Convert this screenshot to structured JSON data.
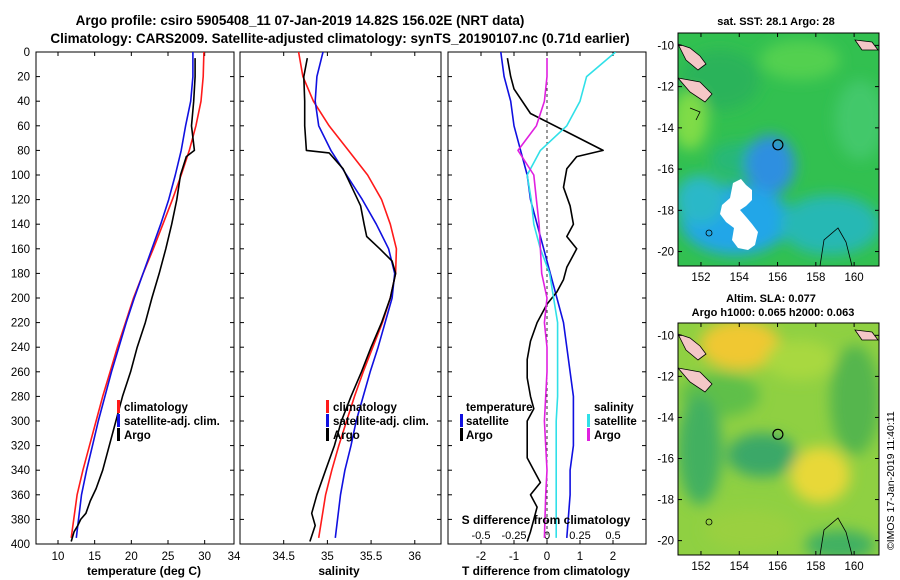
{
  "title_line1": "Argo profile: csiro 5905408_11 07-Jan-2019 14.82S 156.02E (NRT data)",
  "title_line2": "Climatology: CARS2009. Satellite-adjusted climatology: synTS_20190107.nc (0.71d earlier)",
  "credit": "©IMOS 17-Jan-2019 11:40:11",
  "colors": {
    "climatology": "#ff1a1a",
    "satellite": "#1010e0",
    "argo": "#000000",
    "sat_salinity": "#30e0e8",
    "argo_salinity": "#e020e0"
  },
  "chart_data": [
    {
      "type": "line",
      "id": "temperature",
      "xlabel": "temperature (deg C)",
      "ylabel": "",
      "xlim": [
        7,
        34
      ],
      "ylim": [
        400,
        0
      ],
      "y_reversed": true,
      "xticks": [
        10,
        15,
        20,
        25,
        30
      ],
      "yticks": [
        0,
        20,
        40,
        60,
        80,
        100,
        120,
        140,
        160,
        180,
        200,
        220,
        240,
        260,
        280,
        300,
        320,
        340,
        360,
        380,
        400
      ],
      "legend": [
        "climatology",
        "satellite-adj. clim.",
        "Argo"
      ],
      "series": [
        {
          "name": "climatology",
          "color": "#ff1a1a",
          "x": [
            29.9,
            29.8,
            29.5,
            28.8,
            27.9,
            26.8,
            25.6,
            24.3,
            23.0,
            21.6,
            20.3,
            19.2,
            18.1,
            17.1,
            16.1,
            15.2,
            14.3,
            13.4,
            12.6,
            11.8
          ],
          "y": [
            0,
            20,
            40,
            60,
            80,
            100,
            120,
            140,
            160,
            180,
            200,
            220,
            240,
            260,
            280,
            300,
            320,
            340,
            360,
            395
          ]
        },
        {
          "name": "satellite-adj. clim.",
          "color": "#1010e0",
          "x": [
            28.4,
            28.4,
            28.1,
            27.4,
            26.8,
            26.0,
            25.1,
            24.0,
            22.8,
            21.6,
            20.4,
            19.3,
            18.3,
            17.3,
            16.4,
            15.5,
            14.7,
            13.9,
            13.2,
            12.5
          ],
          "y": [
            0,
            20,
            40,
            60,
            80,
            100,
            120,
            140,
            160,
            180,
            200,
            220,
            240,
            260,
            280,
            300,
            320,
            340,
            360,
            395
          ]
        },
        {
          "name": "Argo",
          "color": "#000000",
          "x": [
            28.7,
            28.7,
            28.5,
            28.2,
            28.6,
            27.5,
            26.7,
            26.2,
            25.5,
            24.7,
            23.8,
            22.8,
            21.9,
            20.8,
            19.9,
            18.8,
            17.9,
            17.0,
            16.1,
            15.2,
            14.4,
            13.8,
            13.1,
            12.7,
            12.2,
            11.8
          ],
          "y": [
            5,
            20,
            40,
            60,
            80,
            85,
            100,
            120,
            140,
            160,
            180,
            200,
            220,
            240,
            260,
            280,
            300,
            320,
            340,
            355,
            365,
            375,
            380,
            385,
            390,
            398
          ]
        }
      ]
    },
    {
      "type": "line",
      "id": "salinity",
      "xlabel": "salinity",
      "ylabel": "",
      "xlim": [
        34,
        36.3
      ],
      "ylim": [
        400,
        0
      ],
      "y_reversed": true,
      "xticks": [
        34.5,
        35,
        35.5,
        36
      ],
      "xtick_labels": [
        "34.5",
        "35",
        "35.5",
        "36"
      ],
      "yticks": [
        0,
        20,
        40,
        60,
        80,
        100,
        120,
        140,
        160,
        180,
        200,
        220,
        240,
        260,
        280,
        300,
        320,
        340,
        360,
        380,
        400
      ],
      "legend": [
        "climatology",
        "satellite-adj. clim.",
        "Argo"
      ],
      "series": [
        {
          "name": "climatology",
          "color": "#ff1a1a",
          "x": [
            34.67,
            34.72,
            34.84,
            35.02,
            35.24,
            35.46,
            35.62,
            35.72,
            35.79,
            35.78,
            35.72,
            35.63,
            35.52,
            35.41,
            35.31,
            35.22,
            35.13,
            35.05,
            34.98,
            34.9
          ],
          "y": [
            0,
            20,
            40,
            60,
            80,
            100,
            120,
            140,
            160,
            180,
            200,
            220,
            240,
            260,
            280,
            300,
            320,
            340,
            360,
            395
          ]
        },
        {
          "name": "satellite-adj. clim.",
          "color": "#1010e0",
          "x": [
            34.95,
            34.88,
            34.86,
            34.9,
            35.04,
            35.22,
            35.4,
            35.56,
            35.7,
            35.77,
            35.74,
            35.66,
            35.58,
            35.49,
            35.41,
            35.33,
            35.27,
            35.2,
            35.15,
            35.09
          ],
          "y": [
            0,
            20,
            40,
            60,
            80,
            100,
            120,
            140,
            160,
            180,
            200,
            220,
            240,
            260,
            280,
            300,
            320,
            340,
            360,
            395
          ]
        },
        {
          "name": "Argo",
          "color": "#000000",
          "x": [
            34.77,
            34.73,
            34.74,
            34.74,
            34.76,
            35.02,
            35.18,
            35.28,
            35.38,
            35.42,
            35.45,
            35.6,
            35.74,
            35.78,
            35.72,
            35.62,
            35.5,
            35.39,
            35.27,
            35.16,
            35.08,
            34.98,
            34.88,
            34.82,
            34.86,
            34.8
          ],
          "y": [
            5,
            20,
            40,
            60,
            80,
            82,
            95,
            110,
            125,
            140,
            150,
            160,
            170,
            180,
            200,
            220,
            240,
            260,
            280,
            300,
            320,
            340,
            360,
            375,
            385,
            398
          ]
        }
      ]
    },
    {
      "type": "line",
      "id": "difference",
      "xlabel": "T difference from climatology",
      "top_xlabel": "S difference from climatology",
      "xlim": [
        -3,
        3
      ],
      "top_xlim": [
        -0.75,
        0.75
      ],
      "ylim": [
        400,
        0
      ],
      "y_reversed": true,
      "xticks": [
        -2,
        -1,
        0,
        1,
        2
      ],
      "top_xticks": [
        -0.5,
        -0.25,
        0,
        0.25,
        0.5
      ],
      "top_xtick_labels": [
        "-0.5",
        "-0.25",
        "0",
        "0.25",
        "0.5"
      ],
      "yticks": [
        0,
        20,
        40,
        60,
        80,
        100,
        120,
        140,
        160,
        180,
        200,
        220,
        240,
        260,
        280,
        300,
        320,
        340,
        360,
        380,
        400
      ],
      "legend_temperature": {
        "title": "temperature",
        "items": [
          "satellite",
          "Argo"
        ]
      },
      "legend_salinity": {
        "title": "salinity",
        "items": [
          "satellite",
          "Argo"
        ]
      },
      "series": [
        {
          "name": "temperature satellite",
          "color": "#1010e0",
          "axis": "T",
          "x": [
            -1.4,
            -1.3,
            -1.1,
            -1.0,
            -0.8,
            -0.6,
            -0.5,
            -0.3,
            -0.1,
            0.1,
            0.3,
            0.5,
            0.6,
            0.7,
            0.8,
            0.8,
            0.8,
            0.7,
            0.7,
            0.6
          ],
          "y": [
            0,
            20,
            40,
            60,
            80,
            100,
            120,
            140,
            160,
            180,
            200,
            220,
            240,
            260,
            280,
            300,
            320,
            340,
            360,
            395
          ]
        },
        {
          "name": "temperature Argo",
          "color": "#000000",
          "axis": "T",
          "x": [
            -1.2,
            -1.1,
            -1.0,
            -0.5,
            0.6,
            1.7,
            0.9,
            0.6,
            0.5,
            0.7,
            0.8,
            0.6,
            0.9,
            0.6,
            0.5,
            0.3,
            0.0,
            -0.3,
            -0.5,
            -0.6,
            -0.6,
            -0.5,
            -0.4,
            -0.6,
            -0.6,
            -0.6,
            -0.6,
            -0.4,
            -0.2,
            -0.5,
            -0.3,
            -0.4,
            -0.5,
            -0.6
          ],
          "y": [
            5,
            20,
            30,
            50,
            65,
            80,
            85,
            95,
            110,
            125,
            140,
            150,
            160,
            175,
            185,
            195,
            205,
            220,
            235,
            250,
            265,
            280,
            290,
            300,
            310,
            320,
            330,
            340,
            350,
            360,
            370,
            380,
            390,
            398
          ]
        },
        {
          "name": "salinity satellite",
          "color": "#30e0e8",
          "axis": "S",
          "x": [
            0.52,
            0.3,
            0.25,
            0.15,
            -0.05,
            -0.15,
            -0.12,
            -0.1,
            -0.05,
            0.02,
            0.05,
            0.08,
            0.08,
            0.08,
            0.08,
            0.07,
            0.07,
            0.07,
            0.07,
            0.07
          ],
          "y": [
            0,
            20,
            40,
            60,
            80,
            100,
            120,
            140,
            160,
            180,
            200,
            220,
            240,
            260,
            280,
            300,
            320,
            340,
            360,
            395
          ]
        },
        {
          "name": "salinity Argo",
          "color": "#e020e0",
          "axis": "S",
          "x": [
            0.0,
            0.0,
            -0.02,
            -0.08,
            -0.22,
            -0.1,
            -0.08,
            -0.06,
            -0.05,
            -0.04,
            0.0,
            -0.02,
            0.0,
            0.0,
            -0.01,
            -0.02,
            -0.01,
            0.0,
            -0.01,
            -0.02
          ],
          "y": [
            5,
            20,
            40,
            60,
            80,
            100,
            120,
            140,
            160,
            180,
            200,
            220,
            240,
            260,
            280,
            300,
            320,
            340,
            360,
            395
          ]
        }
      ]
    },
    {
      "type": "heatmap",
      "id": "sst_map",
      "title": "sat. SST: 28.1  Argo: 28",
      "xlim": [
        150.8,
        161.3
      ],
      "ylim": [
        -20.7,
        -9.4
      ],
      "xticks": [
        152,
        154,
        156,
        158,
        160
      ],
      "yticks": [
        -10,
        -12,
        -14,
        -16,
        -18,
        -20
      ],
      "xtick_labels": [
        "152",
        "154",
        "156",
        "158",
        "160"
      ],
      "ytick_labels": [
        "-10",
        "-12",
        "-14",
        "-16",
        "-18",
        "-20"
      ],
      "argo_position": [
        156.02,
        -14.82
      ]
    },
    {
      "type": "heatmap",
      "id": "sla_map",
      "title": "Altim. SLA: 0.077",
      "subtitle": "Argo h1000: 0.065 h2000: 0.063",
      "xlim": [
        150.8,
        161.3
      ],
      "ylim": [
        -20.7,
        -9.4
      ],
      "xticks": [
        152,
        154,
        156,
        158,
        160
      ],
      "yticks": [
        -10,
        -12,
        -14,
        -16,
        -18,
        -20
      ],
      "xtick_labels": [
        "152",
        "154",
        "156",
        "158",
        "160"
      ],
      "ytick_labels": [
        "-10",
        "-12",
        "-14",
        "-16",
        "-18",
        "-20"
      ],
      "argo_position": [
        156.02,
        -14.82
      ]
    }
  ]
}
